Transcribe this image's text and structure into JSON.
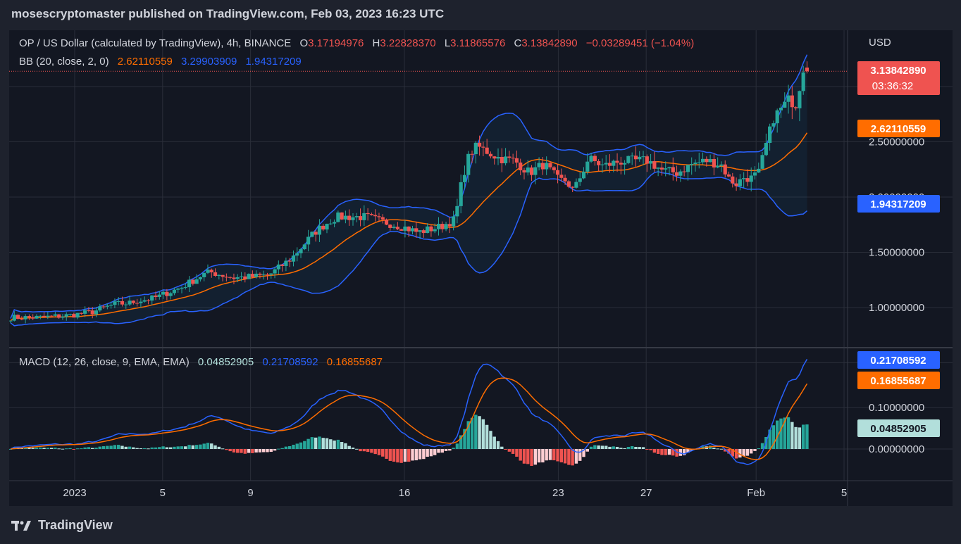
{
  "header": {
    "publish_line": "mosescryptomaster published on TradingView.com, Feb 03, 2023 16:23 UTC"
  },
  "footer": {
    "brand": "TradingView",
    "logo_icon": "tradingview-logo-icon"
  },
  "legend": {
    "symbol": "OP / US Dollar (calculated by TradingView), 4h, BINANCE",
    "o_key": "O",
    "o_val": "3.17194976",
    "h_key": "H",
    "h_val": "3.22828370",
    "l_key": "L",
    "l_val": "3.11865576",
    "c_key": "C",
    "c_val": "3.13842890",
    "change": "−0.03289451 (−1.04%)",
    "bb_label": "BB (20, close, 2, 0)",
    "bb_basis": "2.62110559",
    "bb_upper": "3.29903909",
    "bb_lower": "1.94317209",
    "macd_label": "MACD (12, 26, close, 9, EMA, EMA)",
    "macd_hist": "0.04852905",
    "macd_line": "0.21708592",
    "macd_signal": "0.16855687"
  },
  "axis": {
    "currency": "USD",
    "price_ticks": [
      "2.50000000",
      "2.00000000",
      "1.50000000",
      "1.00000000"
    ],
    "macd_ticks": [
      "0.10000000",
      "0.00000000"
    ],
    "time_ticks": [
      "2023",
      "5",
      "9",
      "16",
      "23",
      "27",
      "Feb",
      "5"
    ],
    "price_labels": {
      "last": "3.13842890",
      "countdown": "03:36:32",
      "bb_basis": "2.62110559",
      "bb_lower": "1.94317209",
      "bb_upper": "3.29903909"
    },
    "macd_labels": {
      "macd_line": "0.21708592",
      "signal": "0.16855687",
      "histogram": "0.04852905"
    }
  },
  "colors": {
    "background": "#131722",
    "up": "#26a69a",
    "down": "#ef5350",
    "bb_basis": "#ff6d00",
    "bb_band": "#2962ff",
    "macd_line": "#2962ff",
    "signal_line": "#ff6d00",
    "hist_light": "#b2dfdb",
    "hist_down_light": "#ffcdd2"
  },
  "chart_data": [
    {
      "type": "candlestick",
      "title": "OP / US Dollar (calculated by TradingView), 4h, BINANCE",
      "x_range": [
        "Jan 1 2023",
        "Feb 5 2023"
      ],
      "ylim": [
        0.75,
        3.35
      ],
      "last": {
        "open": 3.17194976,
        "high": 3.2282837,
        "low": 3.11865576,
        "close": 3.1384289
      },
      "bollinger": {
        "basis": 2.62110559,
        "upper": 3.29903909,
        "lower": 1.94317209
      },
      "anchors_close": [
        [
          0,
          0.91
        ],
        [
          4,
          0.91
        ],
        [
          8,
          0.93
        ],
        [
          11,
          0.96
        ],
        [
          14,
          1.03
        ],
        [
          16,
          1.04
        ],
        [
          17,
          1.06
        ],
        [
          19,
          1.08
        ],
        [
          20,
          1.1
        ],
        [
          21,
          1.13
        ],
        [
          23,
          1.18
        ],
        [
          26,
          1.3
        ],
        [
          27,
          1.32
        ],
        [
          30,
          1.27
        ],
        [
          33,
          1.28
        ],
        [
          35,
          1.3
        ],
        [
          38,
          1.45
        ],
        [
          41,
          1.68
        ],
        [
          43,
          1.78
        ],
        [
          44,
          1.82
        ],
        [
          48,
          1.82
        ],
        [
          50,
          1.78
        ],
        [
          53,
          1.73
        ],
        [
          55,
          1.68
        ],
        [
          56,
          1.7
        ],
        [
          58,
          1.73
        ],
        [
          60,
          1.8
        ],
        [
          61,
          2.18
        ],
        [
          62,
          2.4
        ],
        [
          63,
          2.46
        ],
        [
          66,
          2.35
        ],
        [
          68,
          2.33
        ],
        [
          70,
          2.22
        ],
        [
          72,
          2.3
        ],
        [
          74,
          2.15
        ],
        [
          75,
          2.15
        ],
        [
          76,
          2.05
        ],
        [
          78,
          2.35
        ],
        [
          80,
          2.28
        ],
        [
          82,
          2.32
        ],
        [
          84,
          2.33
        ],
        [
          86,
          2.33
        ],
        [
          88,
          2.24
        ],
        [
          90,
          2.22
        ],
        [
          92,
          2.3
        ],
        [
          94,
          2.33
        ],
        [
          96,
          2.29
        ],
        [
          97,
          2.16
        ],
        [
          98,
          2.12
        ],
        [
          99,
          2.18
        ],
        [
          100,
          2.17
        ],
        [
          101,
          2.22
        ],
        [
          102,
          2.48
        ],
        [
          103,
          2.72
        ],
        [
          104,
          2.8
        ],
        [
          105,
          2.88
        ],
        [
          106,
          2.84
        ],
        [
          107,
          3.17
        ],
        [
          107.5,
          3.14
        ]
      ]
    },
    {
      "type": "line",
      "title": "MACD (12, 26, close, 9, EMA, EMA)",
      "series": [
        {
          "name": "MACD",
          "last": 0.21708592
        },
        {
          "name": "Signal",
          "last": 0.16855687
        },
        {
          "name": "Histogram",
          "last": 0.04852905
        }
      ],
      "ylim": [
        -0.08,
        0.24
      ]
    }
  ]
}
